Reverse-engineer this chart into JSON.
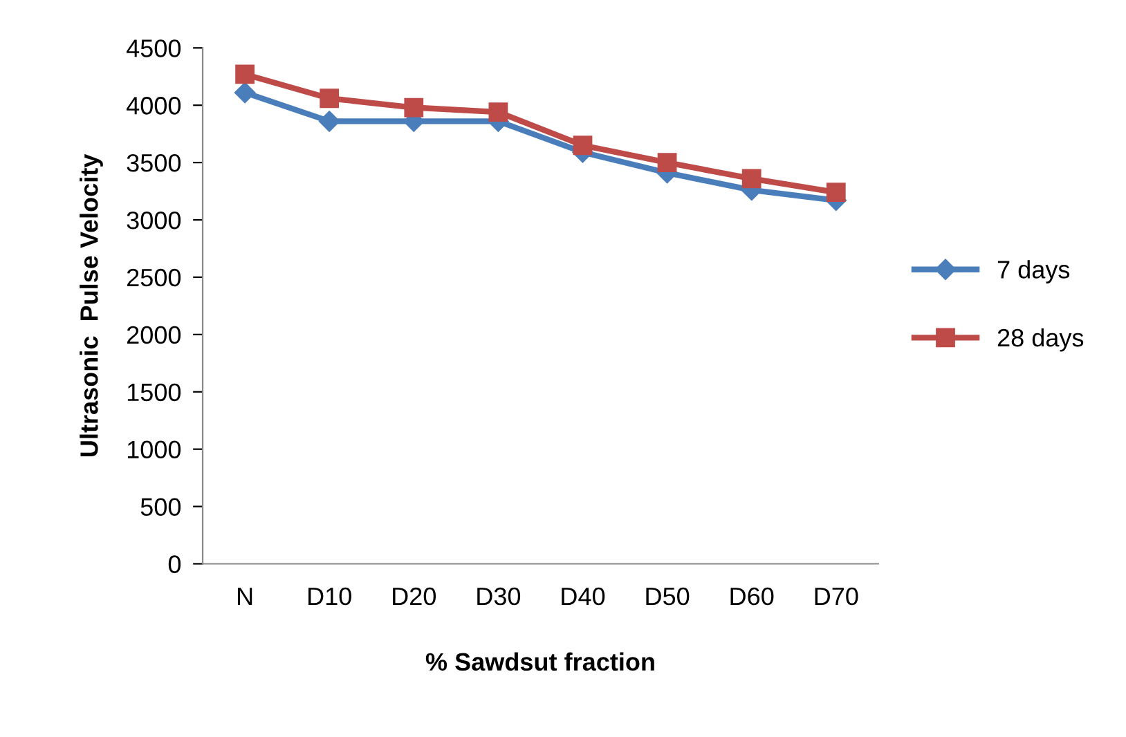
{
  "chart_data": {
    "type": "line",
    "xlabel": "% Sawdsut fraction",
    "ylabel": "Ultrasonic  Pulse Velocity",
    "categories": [
      "N",
      "D10",
      "D20",
      "D30",
      "D40",
      "D50",
      "D60",
      "D70"
    ],
    "series": [
      {
        "name": "7 days",
        "color": "#4a7ebb",
        "marker": "diamond",
        "values": [
          4110,
          3860,
          3860,
          3860,
          3590,
          3410,
          3260,
          3170
        ]
      },
      {
        "name": "28 days",
        "color": "#be4b48",
        "marker": "square",
        "values": [
          4270,
          4060,
          3980,
          3940,
          3650,
          3500,
          3360,
          3240
        ]
      }
    ],
    "ylim": [
      0,
      4500
    ],
    "yticks": [
      0,
      500,
      1000,
      1500,
      2000,
      2500,
      3000,
      3500,
      4000,
      4500
    ],
    "grid": false,
    "legend": "right"
  }
}
